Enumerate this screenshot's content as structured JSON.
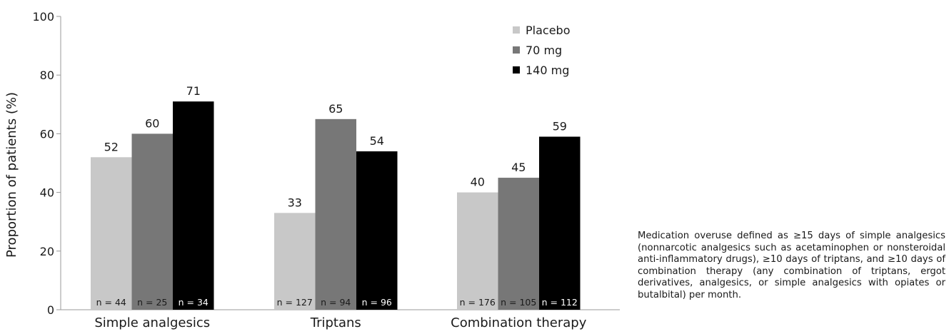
{
  "chart_data": {
    "type": "bar",
    "categories": [
      "Simple analgesics",
      "Triptans",
      "Combination therapy"
    ],
    "series": [
      {
        "name": "Placebo",
        "color": "#c8c8c8",
        "values": [
          52,
          33,
          40
        ],
        "n_labels": [
          "n = 44",
          "n = 127",
          "n = 176"
        ]
      },
      {
        "name": "70 mg",
        "color": "#777777",
        "values": [
          60,
          65,
          45
        ],
        "n_labels": [
          "n = 25",
          "n = 94",
          "n = 105"
        ]
      },
      {
        "name": "140 mg",
        "color": "#000000",
        "values": [
          71,
          54,
          59
        ],
        "n_labels": [
          "n = 34",
          "n = 96",
          "n = 112"
        ]
      }
    ],
    "ylabel": "Proportion of patients (%)",
    "xlabel": "",
    "ylim": [
      0,
      100
    ],
    "yticks": [
      "0",
      "20",
      "40",
      "60",
      "80",
      "100"
    ],
    "legend_position": "top-right",
    "grid": false
  },
  "caption": "Medication overuse defined as ≥15 days of simple analgesics (nonnarcotic analgesics such as acet­aminophen or nonsteroidal anti-inflammatory drugs), ≥10 days of triptans, and ≥10 days of com­bination therapy (any combination of triptans, er­got derivatives, analgesics, or simple analgesics with opiates or butalbital) per month."
}
